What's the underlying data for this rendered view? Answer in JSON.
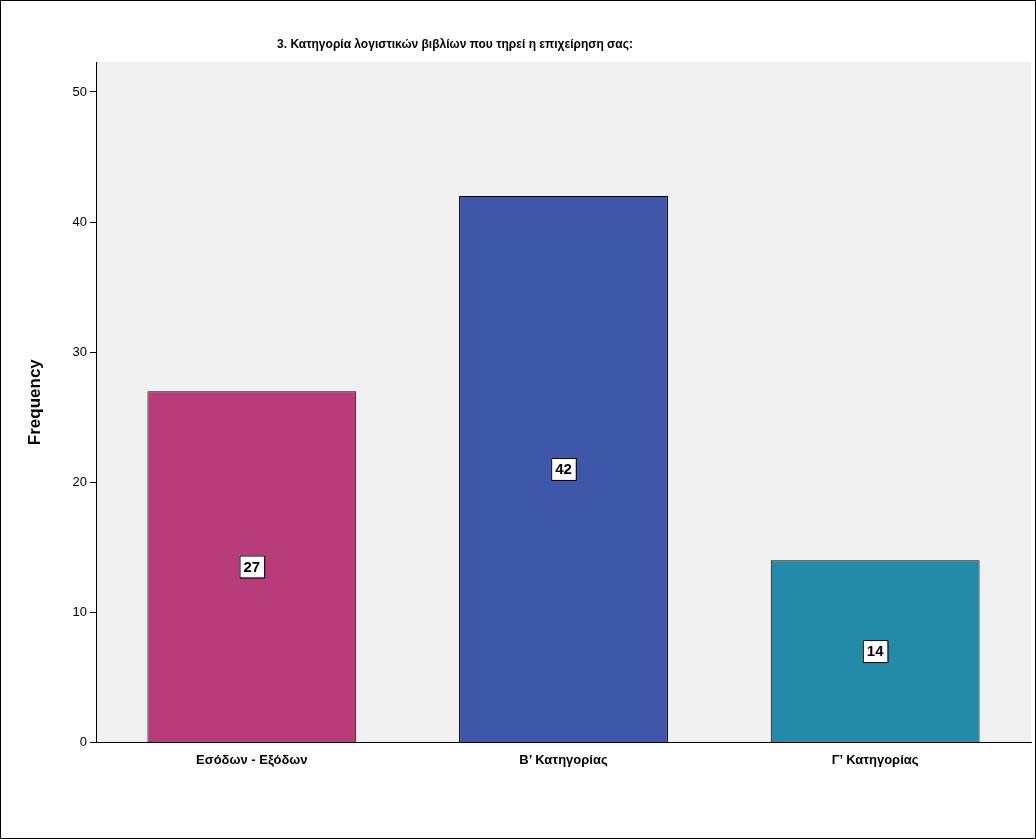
{
  "chart_data": {
    "type": "bar",
    "title": "3. Κατηγορία λογιστικών βιβλίων που τηρεί η επιχείρηση σας:",
    "ylabel": "Frequency",
    "categories": [
      "Εσόδων - Εξόδων",
      "Β’ Κατηγορίας",
      "Γ’ Κατηγορίας"
    ],
    "values": [
      27,
      42,
      14
    ],
    "colors": [
      "#b83c7a",
      "#3e57a9",
      "#238aa8"
    ],
    "ylim": [
      0,
      52.3
    ],
    "yticks": [
      0,
      10,
      20,
      30,
      40,
      50
    ],
    "grid": false,
    "legend": false,
    "data_labels": true
  }
}
